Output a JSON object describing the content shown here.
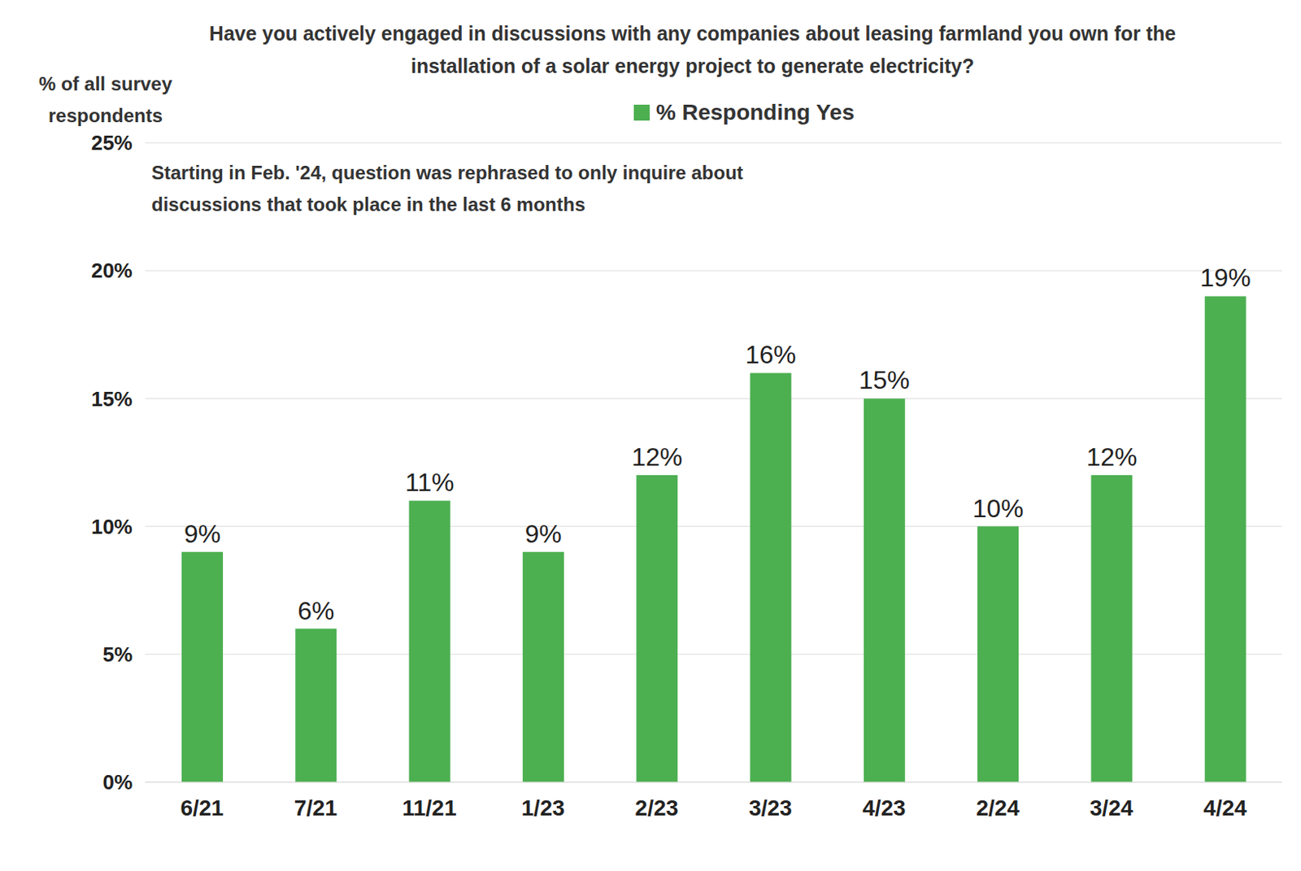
{
  "chart_data": {
    "type": "bar",
    "title": "Have you actively engaged in discussions with any companies about leasing farmland you own for the installation of a solar energy project to generate electricity?",
    "y_label": "% of all survey respondents",
    "annotation": "Starting in Feb. '24, question was rephrased to only inquire about discussions that took place in the last 6 months",
    "categories": [
      "6/21",
      "7/21",
      "11/21",
      "1/23",
      "2/23",
      "3/23",
      "4/23",
      "2/24",
      "3/24",
      "4/24"
    ],
    "series": [
      {
        "name": "% Responding Yes",
        "color": "#4caf50",
        "values": [
          9,
          6,
          11,
          9,
          12,
          16,
          15,
          10,
          12,
          19
        ],
        "value_labels": [
          "9%",
          "6%",
          "11%",
          "9%",
          "12%",
          "16%",
          "15%",
          "10%",
          "12%",
          "19%"
        ]
      }
    ],
    "ylim": [
      0,
      25
    ],
    "yticks": [
      {
        "value": 0,
        "label": "0%"
      },
      {
        "value": 5,
        "label": "5%"
      },
      {
        "value": 10,
        "label": "10%"
      },
      {
        "value": 15,
        "label": "15%"
      },
      {
        "value": 20,
        "label": "20%"
      },
      {
        "value": 25,
        "label": "25%"
      }
    ],
    "grid": true,
    "legend": "top",
    "data_labels": true
  }
}
